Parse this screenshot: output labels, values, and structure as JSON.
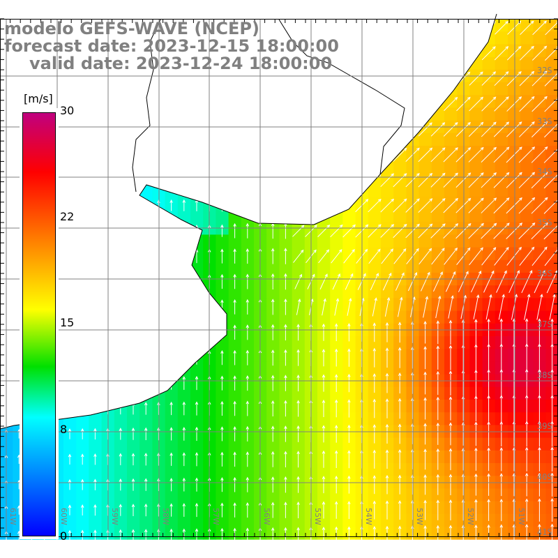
{
  "title": {
    "line1": "modelo GEFS-WAVE (NCEP)",
    "line2": "forecast date: 2023-12-15 18:00:00",
    "line3": "valid date: 2023-12-24 18:00:00"
  },
  "colorbar": {
    "unit": "[m/s]",
    "ticks": [
      "30",
      "22",
      "15",
      "8",
      "0"
    ],
    "stops": [
      {
        "value": 0,
        "color": "#0000ff"
      },
      {
        "value": 8.3,
        "color": "#00ffff"
      },
      {
        "value": 12,
        "color": "#00e000"
      },
      {
        "value": 16,
        "color": "#ffff00"
      },
      {
        "value": 19.5,
        "color": "#ffa500"
      },
      {
        "value": 25.7,
        "color": "#ff0000"
      },
      {
        "value": 30,
        "color": "#c0007f"
      }
    ],
    "min": 0,
    "max": 30
  },
  "map": {
    "longitude_labels": [
      "61W",
      "60W",
      "59W",
      "58W",
      "57W",
      "56W",
      "55W",
      "54W",
      "53W",
      "52W",
      "51W"
    ],
    "latitude_labels": [
      "32S",
      "33S",
      "34S",
      "35S",
      "36S",
      "37S",
      "38S",
      "39S",
      "40S",
      "41S"
    ],
    "land_color": "#ffffff",
    "grid_color": "#808080"
  }
}
